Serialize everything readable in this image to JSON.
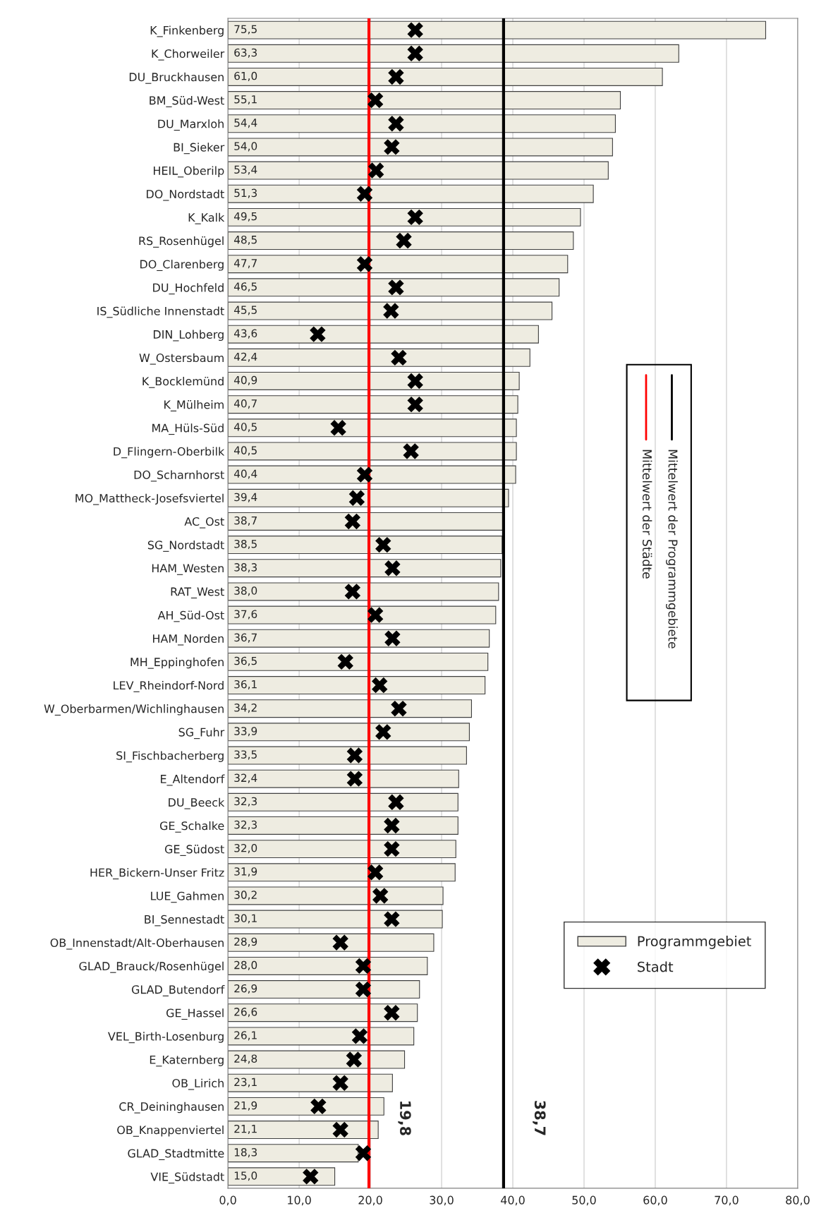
{
  "chart_data": {
    "type": "bar",
    "orientation": "horizontal",
    "categories": [
      "K_Finkenberg",
      "K_Chorweiler",
      "DU_Bruckhausen",
      "BM_Süd-West",
      "DU_Marxloh",
      "BI_Sieker",
      "HEIL_Oberilp",
      "DO_Nordstadt",
      "K_Kalk",
      "RS_Rosenhügel",
      "DO_Clarenberg",
      "DU_Hochfeld",
      "IS_Südliche Innenstadt",
      "DIN_Lohberg",
      "W_Ostersbaum",
      "K_Bocklemünd",
      "K_Mülheim",
      "MA_Hüls-Süd",
      "D_Flingern-Oberbilk",
      "DO_Scharnhorst",
      "MO_Mattheck-Josefsviertel",
      "AC_Ost",
      "SG_Nordstadt",
      "HAM_Westen",
      "RAT_West",
      "AH_Süd-Ost",
      "HAM_Norden",
      "MH_Eppinghofen",
      "LEV_Rheindorf-Nord",
      "W_Oberbarmen/Wichlinghausen",
      "SG_Fuhr",
      "SI_Fischbacherberg",
      "E_Altendorf",
      "DU_Beeck",
      "GE_Schalke",
      "GE_Südost",
      "HER_Bickern-Unser Fritz",
      "LUE_Gahmen",
      "BI_Sennestadt",
      "OB_Innenstadt/Alt-Oberhausen",
      "GLAD_Brauck/Rosenhügel",
      "GLAD_Butendorf",
      "GE_Hassel",
      "VEL_Birth-Losenburg",
      "E_Katernberg",
      "OB_Lirich",
      "CR_Deininghausen",
      "OB_Knappenviertel",
      "GLAD_Stadtmitte",
      "VIE_Südstadt"
    ],
    "series": [
      {
        "name": "Programmgebiet",
        "color": "#eeece1",
        "value_labels": [
          "75,5",
          "63,3",
          "61,0",
          "55,1",
          "54,4",
          "54,0",
          "53,4",
          "51,3",
          "49,5",
          "48,5",
          "47,7",
          "46,5",
          "45,5",
          "43,6",
          "42,4",
          "40,9",
          "40,7",
          "40,5",
          "40,5",
          "40,4",
          "39,4",
          "38,7",
          "38,5",
          "38,3",
          "38,0",
          "37,6",
          "36,7",
          "36,5",
          "36,1",
          "34,2",
          "33,9",
          "33,5",
          "32,4",
          "32,3",
          "32,3",
          "32,0",
          "31,9",
          "30,2",
          "30,1",
          "28,9",
          "28,0",
          "26,9",
          "26,6",
          "26,1",
          "24,8",
          "23,1",
          "21,9",
          "21,1",
          "18,3",
          "15,0"
        ],
        "values": [
          75.5,
          63.3,
          61.0,
          55.1,
          54.4,
          54.0,
          53.4,
          51.3,
          49.5,
          48.5,
          47.7,
          46.5,
          45.5,
          43.6,
          42.4,
          40.9,
          40.7,
          40.5,
          40.5,
          40.4,
          39.4,
          38.7,
          38.5,
          38.3,
          38.0,
          37.6,
          36.7,
          36.5,
          36.1,
          34.2,
          33.9,
          33.5,
          32.4,
          32.3,
          32.3,
          32.0,
          31.9,
          30.2,
          30.1,
          28.9,
          28.0,
          26.9,
          26.6,
          26.1,
          24.8,
          23.1,
          21.9,
          21.1,
          18.3,
          15.0
        ]
      },
      {
        "name": "Stadt",
        "type": "scatter",
        "color": "#000000",
        "marker": "cross",
        "values": [
          26.3,
          26.3,
          23.6,
          20.7,
          23.6,
          23.0,
          20.8,
          19.2,
          26.3,
          24.7,
          19.2,
          23.6,
          22.9,
          12.6,
          24.0,
          26.3,
          26.3,
          15.5,
          25.7,
          19.2,
          18.1,
          17.5,
          21.8,
          23.1,
          17.5,
          20.7,
          23.1,
          16.5,
          21.3,
          24.0,
          21.8,
          17.8,
          17.8,
          23.6,
          23.0,
          23.0,
          20.7,
          21.4,
          23.0,
          15.8,
          19.0,
          19.0,
          23.0,
          18.5,
          17.7,
          15.8,
          12.7,
          15.8,
          19.0,
          11.6
        ]
      }
    ],
    "xlim": [
      0,
      80
    ],
    "xticks": [
      {
        "value": 0,
        "label": "0,0"
      },
      {
        "value": 10,
        "label": "10,0"
      },
      {
        "value": 20,
        "label": "20,0"
      },
      {
        "value": 30,
        "label": "30,0"
      },
      {
        "value": 40,
        "label": "40,0"
      },
      {
        "value": 50,
        "label": "50,0"
      },
      {
        "value": 60,
        "label": "60,0"
      },
      {
        "value": 70,
        "label": "70,0"
      },
      {
        "value": 80,
        "label": "80,0"
      }
    ],
    "ref_lines": [
      {
        "axis": "x",
        "value": 19.8,
        "label": "19,8",
        "color": "#ff0000"
      },
      {
        "axis": "x",
        "value": 38.7,
        "label": "38,7",
        "color": "#000000"
      }
    ],
    "annotations": [
      "Mittelwert der Städte",
      "Mittelwert der Programmgebiete"
    ],
    "grid": "x",
    "legend": "bottom right"
  }
}
